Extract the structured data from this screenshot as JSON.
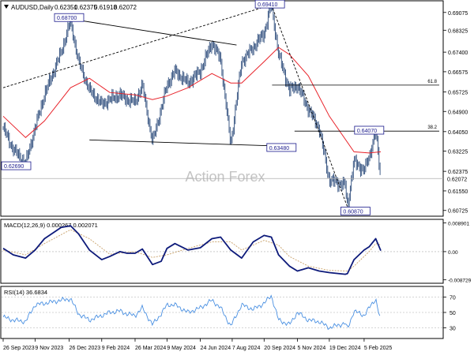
{
  "header": {
    "triangle_icon": "triangle-down-icon",
    "symbol": "AUDUSD,Daily",
    "open": "0.62351",
    "high": "0.62375",
    "low": "0.61918",
    "close": "0.62072"
  },
  "watermark": "Action Forex",
  "colors": {
    "price": "#2b4a7a",
    "ma": "#e8232a",
    "trendline": "#000000",
    "macd_line": "#0d1a7a",
    "macd_signal": "#c8a068",
    "rsi": "#4a90e2",
    "label_border": "#1a1a8c",
    "grid": "#cccccc"
  },
  "chart_data": [
    {
      "type": "ohlc",
      "symbol": "AUDUSD",
      "timeframe": "Daily",
      "ylim": [
        0.6055,
        0.695
      ],
      "y_ticks": [
        "0.69075",
        "0.68325",
        "0.67400",
        "0.66575",
        "0.65725",
        "0.64900",
        "0.64050",
        "0.63225",
        "0.62375",
        "0.61550",
        "0.60725"
      ],
      "x_ticks": [
        "26 Sep 2023",
        "9 Nov 2023",
        "26 Dec 2023",
        "9 Feb 2024",
        "26 Mar 2024",
        "9 May 2024",
        "24 Jun 2024",
        "7 Aug 2024",
        "20 Sep 2024",
        "5 Nov 2024",
        "19 Dec 2024",
        "5 Feb 2025"
      ],
      "price_path": [
        [
          "2023-09-26",
          0.642
        ],
        [
          "2023-10-10",
          0.633
        ],
        [
          "2023-10-27",
          0.627
        ],
        [
          "2023-11-09",
          0.642
        ],
        [
          "2023-11-22",
          0.656
        ],
        [
          "2023-12-15",
          0.674
        ],
        [
          "2023-12-28",
          0.687
        ],
        [
          "2024-01-08",
          0.67
        ],
        [
          "2024-01-23",
          0.658
        ],
        [
          "2024-02-09",
          0.652
        ],
        [
          "2024-02-20",
          0.654
        ],
        [
          "2024-03-05",
          0.656
        ],
        [
          "2024-03-15",
          0.654
        ],
        [
          "2024-03-26",
          0.653
        ],
        [
          "2024-04-05",
          0.66
        ],
        [
          "2024-04-19",
          0.636
        ],
        [
          "2024-05-01",
          0.65
        ],
        [
          "2024-05-09",
          0.66
        ],
        [
          "2024-05-20",
          0.666
        ],
        [
          "2024-06-07",
          0.661
        ],
        [
          "2024-06-24",
          0.666
        ],
        [
          "2024-07-10",
          0.678
        ],
        [
          "2024-07-22",
          0.671
        ],
        [
          "2024-08-05",
          0.635
        ],
        [
          "2024-08-20",
          0.67
        ],
        [
          "2024-09-05",
          0.676
        ],
        [
          "2024-09-20",
          0.682
        ],
        [
          "2024-09-30",
          0.6941
        ],
        [
          "2024-10-10",
          0.673
        ],
        [
          "2024-10-25",
          0.658
        ],
        [
          "2024-11-05",
          0.66
        ],
        [
          "2024-11-20",
          0.65
        ],
        [
          "2024-12-05",
          0.642
        ],
        [
          "2024-12-19",
          0.62
        ],
        [
          "2025-01-10",
          0.618
        ],
        [
          "2025-01-13",
          0.6087
        ],
        [
          "2025-01-22",
          0.628
        ],
        [
          "2025-02-05",
          0.624
        ],
        [
          "2025-02-12",
          0.63
        ],
        [
          "2025-02-21",
          0.6407
        ],
        [
          "2025-02-28",
          0.6207
        ]
      ],
      "moving_average": [
        [
          "2023-09-26",
          0.647
        ],
        [
          "2023-10-27",
          0.638
        ],
        [
          "2023-11-22",
          0.645
        ],
        [
          "2023-12-28",
          0.659
        ],
        [
          "2024-01-23",
          0.663
        ],
        [
          "2024-02-20",
          0.657
        ],
        [
          "2024-03-26",
          0.656
        ],
        [
          "2024-04-19",
          0.654
        ],
        [
          "2024-05-09",
          0.6555
        ],
        [
          "2024-06-07",
          0.659
        ],
        [
          "2024-07-10",
          0.665
        ],
        [
          "2024-08-05",
          0.661
        ],
        [
          "2024-08-20",
          0.661
        ],
        [
          "2024-09-20",
          0.67
        ],
        [
          "2024-10-10",
          0.676
        ],
        [
          "2024-10-25",
          0.673
        ],
        [
          "2024-11-20",
          0.664
        ],
        [
          "2024-12-19",
          0.647
        ],
        [
          "2025-01-22",
          0.632
        ],
        [
          "2025-02-12",
          0.6315
        ],
        [
          "2025-02-28",
          0.632
        ]
      ],
      "trendlines": [
        {
          "kind": "solid",
          "from": [
            "2023-12-28",
            0.688
          ],
          "to": [
            "2024-08-13",
            0.677
          ]
        },
        {
          "kind": "solid",
          "from": [
            "2024-01-23",
            0.637
          ],
          "to": [
            "2024-10-01",
            0.6345
          ]
        },
        {
          "kind": "dashed",
          "from": [
            "2023-09-26",
            0.659
          ],
          "to": [
            "2024-09-30",
            0.694
          ]
        },
        {
          "kind": "dashed",
          "from": [
            "2024-09-30",
            0.694
          ],
          "to": [
            "2025-01-13",
            0.6087
          ]
        }
      ],
      "fib_levels": [
        {
          "label": "61.8",
          "value": 0.6601,
          "from": "2024-10-01"
        },
        {
          "label": "38.2",
          "value": 0.6407,
          "from": "2024-11-01"
        }
      ],
      "point_labels": [
        "0.68700",
        "0.69410",
        "0.63480",
        "0.62690",
        "0.64070",
        "0.60870"
      ],
      "current_price_label": "0.62072",
      "current_price": 0.62072
    },
    {
      "type": "line",
      "title": "MACD(12,26,9) 0.000267 0.002071",
      "ylim": [
        -0.0093,
        0.0095
      ],
      "y_ticks": [
        "0.008901",
        "0.00",
        "-0.008729"
      ],
      "series": [
        {
          "role": "macd",
          "values": [
            [
              "2023-09-26",
              0.001
            ],
            [
              "2023-10-10",
              -0.001
            ],
            [
              "2023-10-27",
              -0.002
            ],
            [
              "2023-11-09",
              0.0005
            ],
            [
              "2023-11-22",
              0.004
            ],
            [
              "2023-12-15",
              0.0075
            ],
            [
              "2023-12-28",
              0.008
            ],
            [
              "2024-01-08",
              0.0055
            ],
            [
              "2024-01-23",
              0.0005
            ],
            [
              "2024-02-09",
              -0.0025
            ],
            [
              "2024-02-20",
              -0.0015
            ],
            [
              "2024-03-05",
              0.0
            ],
            [
              "2024-03-15",
              -0.0005
            ],
            [
              "2024-03-26",
              -0.0005
            ],
            [
              "2024-04-05",
              0.0008
            ],
            [
              "2024-04-19",
              -0.004
            ],
            [
              "2024-05-01",
              -0.003
            ],
            [
              "2024-05-09",
              0.001
            ],
            [
              "2024-05-20",
              0.0025
            ],
            [
              "2024-06-07",
              0.0005
            ],
            [
              "2024-06-24",
              0.0012
            ],
            [
              "2024-07-10",
              0.004
            ],
            [
              "2024-07-22",
              0.0045
            ],
            [
              "2024-08-05",
              0.0005
            ],
            [
              "2024-08-20",
              -0.002
            ],
            [
              "2024-09-05",
              0.003
            ],
            [
              "2024-09-20",
              0.005
            ],
            [
              "2024-09-30",
              0.0045
            ],
            [
              "2024-10-10",
              -0.001
            ],
            [
              "2024-10-25",
              -0.0045
            ],
            [
              "2024-11-05",
              -0.006
            ],
            [
              "2024-11-20",
              -0.005
            ],
            [
              "2024-12-05",
              -0.006
            ],
            [
              "2024-12-19",
              -0.0065
            ],
            [
              "2025-01-10",
              -0.007
            ],
            [
              "2025-01-13",
              -0.0068
            ],
            [
              "2025-01-22",
              -0.0025
            ],
            [
              "2025-02-05",
              0.0005
            ],
            [
              "2025-02-12",
              0.0015
            ],
            [
              "2025-02-21",
              0.004
            ],
            [
              "2025-02-28",
              0.0003
            ]
          ]
        },
        {
          "role": "signal",
          "values": [
            [
              "2023-09-26",
              0.0005
            ],
            [
              "2023-10-27",
              -0.001
            ],
            [
              "2023-11-22",
              0.0025
            ],
            [
              "2023-12-28",
              0.0068
            ],
            [
              "2024-01-23",
              0.004
            ],
            [
              "2024-02-20",
              -0.0008
            ],
            [
              "2024-03-26",
              0.0
            ],
            [
              "2024-04-19",
              -0.0018
            ],
            [
              "2024-05-09",
              -0.001
            ],
            [
              "2024-06-07",
              0.001
            ],
            [
              "2024-07-10",
              0.003
            ],
            [
              "2024-08-05",
              0.003
            ],
            [
              "2024-08-20",
              0.0005
            ],
            [
              "2024-09-20",
              0.0035
            ],
            [
              "2024-10-10",
              0.002
            ],
            [
              "2024-10-25",
              -0.0015
            ],
            [
              "2024-11-20",
              -0.0045
            ],
            [
              "2024-12-19",
              -0.0058
            ],
            [
              "2025-01-13",
              -0.006
            ],
            [
              "2025-01-22",
              -0.0045
            ],
            [
              "2025-02-12",
              0.0
            ],
            [
              "2025-02-21",
              0.0025
            ],
            [
              "2025-02-28",
              0.0021
            ]
          ]
        }
      ]
    },
    {
      "type": "line",
      "title": "RSI(14) 36.6834",
      "ylim": [
        18,
        82
      ],
      "y_ticks": [
        "70",
        "50",
        "30"
      ],
      "series": [
        {
          "role": "rsi",
          "values": [
            [
              "2023-09-26",
              44
            ],
            [
              "2023-10-10",
              40
            ],
            [
              "2023-10-27",
              38
            ],
            [
              "2023-11-09",
              60
            ],
            [
              "2023-11-22",
              62
            ],
            [
              "2023-12-15",
              66
            ],
            [
              "2023-12-28",
              68
            ],
            [
              "2024-01-08",
              48
            ],
            [
              "2024-01-23",
              40
            ],
            [
              "2024-02-09",
              46
            ],
            [
              "2024-02-20",
              50
            ],
            [
              "2024-03-05",
              52
            ],
            [
              "2024-03-15",
              48
            ],
            [
              "2024-03-26",
              46
            ],
            [
              "2024-04-05",
              56
            ],
            [
              "2024-04-19",
              34
            ],
            [
              "2024-05-01",
              48
            ],
            [
              "2024-05-09",
              60
            ],
            [
              "2024-05-20",
              60
            ],
            [
              "2024-06-07",
              50
            ],
            [
              "2024-06-24",
              56
            ],
            [
              "2024-07-10",
              66
            ],
            [
              "2024-07-22",
              56
            ],
            [
              "2024-08-05",
              32
            ],
            [
              "2024-08-20",
              60
            ],
            [
              "2024-09-05",
              54
            ],
            [
              "2024-09-20",
              62
            ],
            [
              "2024-09-30",
              72
            ],
            [
              "2024-10-10",
              40
            ],
            [
              "2024-10-25",
              34
            ],
            [
              "2024-11-05",
              50
            ],
            [
              "2024-11-20",
              40
            ],
            [
              "2024-12-05",
              38
            ],
            [
              "2024-12-19",
              30
            ],
            [
              "2025-01-10",
              36
            ],
            [
              "2025-01-13",
              28
            ],
            [
              "2025-01-22",
              52
            ],
            [
              "2025-02-05",
              46
            ],
            [
              "2025-02-12",
              56
            ],
            [
              "2025-02-21",
              68
            ],
            [
              "2025-02-28",
              37
            ]
          ]
        }
      ]
    }
  ]
}
